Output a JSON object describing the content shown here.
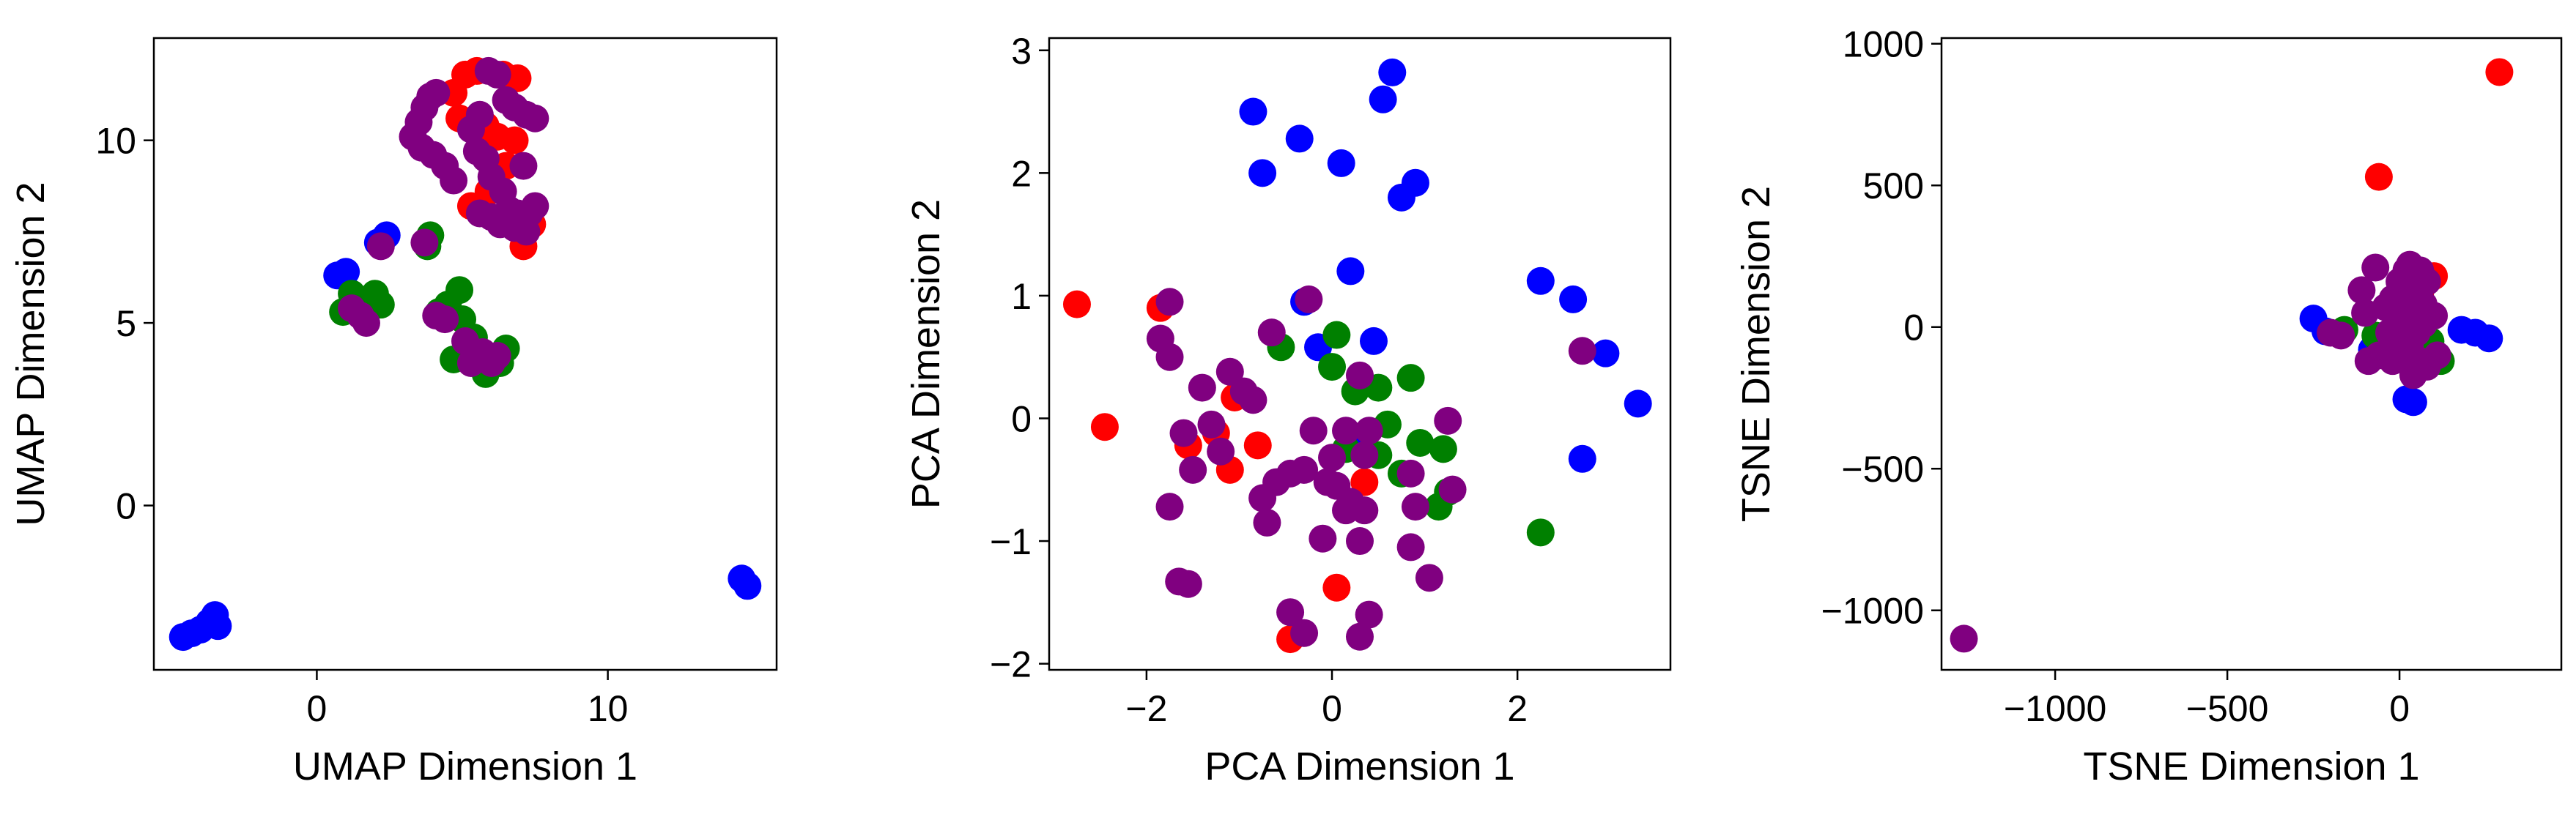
{
  "colors": {
    "red": "#ff0000",
    "green": "#008000",
    "blue": "#0000ff",
    "purple": "#800080"
  },
  "chart_data": [
    {
      "type": "scatter",
      "xlabel": "UMAP Dimension 1",
      "ylabel": "UMAP Dimension 2",
      "xlim": [
        -5.6,
        15.8
      ],
      "ylim": [
        -4.5,
        12.8
      ],
      "xticks": [
        0,
        10
      ],
      "yticks": [
        0,
        5,
        10
      ],
      "grid": false,
      "series": [
        {
          "color": "#0000ff",
          "points": [
            [
              -4.6,
              -3.6
            ],
            [
              -4.3,
              -3.5
            ],
            [
              -4.0,
              -3.4
            ],
            [
              -3.7,
              -3.2
            ],
            [
              -3.5,
              -3.0
            ],
            [
              -3.4,
              -3.3
            ],
            [
              0.7,
              6.3
            ],
            [
              1.0,
              6.4
            ],
            [
              2.1,
              7.2
            ],
            [
              2.4,
              7.4
            ],
            [
              14.6,
              -2.0
            ],
            [
              14.8,
              -2.2
            ]
          ]
        },
        {
          "color": "#008000",
          "points": [
            [
              0.9,
              5.3
            ],
            [
              1.2,
              5.8
            ],
            [
              1.6,
              5.5
            ],
            [
              2.0,
              5.8
            ],
            [
              2.2,
              5.5
            ],
            [
              3.8,
              7.1
            ],
            [
              4.2,
              5.3
            ],
            [
              4.5,
              5.5
            ],
            [
              4.9,
              5.9
            ],
            [
              5.0,
              5.1
            ],
            [
              5.4,
              4.6
            ],
            [
              4.7,
              4.0
            ],
            [
              5.8,
              3.6
            ],
            [
              6.3,
              3.9
            ],
            [
              6.5,
              4.3
            ],
            [
              3.9,
              7.4
            ]
          ]
        },
        {
          "color": "#ff0000",
          "points": [
            [
              4.7,
              11.3
            ],
            [
              5.1,
              11.8
            ],
            [
              5.5,
              11.9
            ],
            [
              6.4,
              11.8
            ],
            [
              6.9,
              11.7
            ],
            [
              4.9,
              10.6
            ],
            [
              5.8,
              10.4
            ],
            [
              6.2,
              10.1
            ],
            [
              6.8,
              10.0
            ],
            [
              7.1,
              7.1
            ],
            [
              7.4,
              7.7
            ],
            [
              5.3,
              8.2
            ],
            [
              5.9,
              8.6
            ],
            [
              6.5,
              9.3
            ]
          ]
        },
        {
          "color": "#800080",
          "points": [
            [
              3.3,
              10.1
            ],
            [
              3.5,
              10.5
            ],
            [
              3.7,
              10.9
            ],
            [
              3.9,
              11.2
            ],
            [
              4.1,
              11.3
            ],
            [
              3.6,
              9.8
            ],
            [
              4.0,
              9.6
            ],
            [
              4.4,
              9.3
            ],
            [
              4.7,
              8.9
            ],
            [
              5.3,
              10.3
            ],
            [
              5.6,
              10.7
            ],
            [
              5.9,
              11.9
            ],
            [
              6.2,
              11.8
            ],
            [
              6.5,
              11.1
            ],
            [
              6.8,
              10.9
            ],
            [
              7.2,
              10.7
            ],
            [
              7.5,
              10.6
            ],
            [
              5.5,
              9.7
            ],
            [
              5.8,
              9.5
            ],
            [
              6.0,
              9.0
            ],
            [
              6.4,
              8.6
            ],
            [
              6.6,
              8.1
            ],
            [
              6.9,
              8.0
            ],
            [
              7.3,
              8.0
            ],
            [
              7.5,
              8.2
            ],
            [
              7.1,
              9.3
            ],
            [
              5.6,
              8.0
            ],
            [
              6.0,
              7.9
            ],
            [
              6.3,
              7.7
            ],
            [
              6.8,
              7.6
            ],
            [
              7.2,
              7.5
            ],
            [
              3.7,
              7.2
            ],
            [
              2.2,
              7.1
            ],
            [
              1.2,
              5.4
            ],
            [
              1.5,
              5.2
            ],
            [
              1.7,
              5.0
            ],
            [
              4.1,
              5.2
            ],
            [
              4.4,
              5.1
            ],
            [
              5.1,
              4.5
            ],
            [
              5.4,
              4.0
            ],
            [
              5.7,
              4.2
            ],
            [
              6.0,
              3.9
            ],
            [
              6.2,
              4.1
            ],
            [
              5.3,
              3.9
            ]
          ]
        }
      ]
    },
    {
      "type": "scatter",
      "xlabel": "PCA Dimension 1",
      "ylabel": "PCA Dimension 2",
      "xlim": [
        -3.05,
        3.65
      ],
      "ylim": [
        -2.05,
        3.1
      ],
      "xticks": [
        -2,
        0,
        2
      ],
      "yticks": [
        -2,
        -1,
        0,
        1,
        2,
        3
      ],
      "grid": false,
      "series": [
        {
          "color": "#0000ff",
          "points": [
            [
              -0.85,
              2.5
            ],
            [
              -0.75,
              2.0
            ],
            [
              -0.35,
              2.28
            ],
            [
              0.1,
              2.08
            ],
            [
              0.55,
              2.6
            ],
            [
              0.65,
              2.82
            ],
            [
              0.9,
              1.92
            ],
            [
              0.75,
              1.8
            ],
            [
              0.2,
              1.2
            ],
            [
              -0.3,
              0.95
            ],
            [
              -0.15,
              0.58
            ],
            [
              0.45,
              0.63
            ],
            [
              2.25,
              1.12
            ],
            [
              2.6,
              0.97
            ],
            [
              2.95,
              0.53
            ],
            [
              3.3,
              0.12
            ],
            [
              2.7,
              -0.33
            ],
            [
              0.25,
              -0.2
            ]
          ]
        },
        {
          "color": "#008000",
          "points": [
            [
              -0.55,
              0.58
            ],
            [
              0.05,
              0.68
            ],
            [
              0.0,
              0.42
            ],
            [
              0.25,
              0.22
            ],
            [
              0.5,
              0.25
            ],
            [
              0.85,
              0.33
            ],
            [
              0.6,
              -0.05
            ],
            [
              0.95,
              -0.2
            ],
            [
              1.2,
              -0.25
            ],
            [
              1.15,
              -0.72
            ],
            [
              0.5,
              -0.3
            ],
            [
              0.75,
              -0.45
            ],
            [
              1.25,
              -0.6
            ],
            [
              2.25,
              -0.93
            ],
            [
              0.15,
              -0.25
            ]
          ]
        },
        {
          "color": "#ff0000",
          "points": [
            [
              -2.75,
              0.93
            ],
            [
              -2.45,
              -0.07
            ],
            [
              -1.85,
              0.9
            ],
            [
              -1.05,
              0.17
            ],
            [
              -0.8,
              -0.22
            ],
            [
              -1.1,
              -0.42
            ],
            [
              -1.55,
              -0.22
            ],
            [
              0.35,
              -0.52
            ],
            [
              0.05,
              -1.38
            ],
            [
              -0.45,
              -1.8
            ],
            [
              -1.25,
              -0.12
            ]
          ]
        },
        {
          "color": "#800080",
          "points": [
            [
              -1.75,
              0.95
            ],
            [
              -1.85,
              0.65
            ],
            [
              -1.75,
              0.5
            ],
            [
              -1.1,
              0.38
            ],
            [
              -1.4,
              0.25
            ],
            [
              -0.95,
              0.22
            ],
            [
              -0.85,
              0.15
            ],
            [
              -0.65,
              0.7
            ],
            [
              -0.25,
              0.97
            ],
            [
              0.3,
              0.35
            ],
            [
              -1.6,
              -0.12
            ],
            [
              -1.5,
              -0.42
            ],
            [
              -1.3,
              -0.05
            ],
            [
              -1.2,
              -0.27
            ],
            [
              -0.6,
              -0.52
            ],
            [
              -0.45,
              -0.45
            ],
            [
              -0.3,
              -0.42
            ],
            [
              -0.2,
              -0.1
            ],
            [
              0.0,
              -0.32
            ],
            [
              0.15,
              -0.1
            ],
            [
              0.35,
              -0.3
            ],
            [
              0.4,
              -0.1
            ],
            [
              -0.05,
              -0.52
            ],
            [
              0.2,
              -0.68
            ],
            [
              0.15,
              -0.75
            ],
            [
              0.35,
              -0.75
            ],
            [
              -0.75,
              -0.65
            ],
            [
              -0.7,
              -0.85
            ],
            [
              -1.75,
              -0.72
            ],
            [
              -1.65,
              -1.33
            ],
            [
              -1.55,
              -1.35
            ],
            [
              -0.1,
              -0.98
            ],
            [
              0.3,
              -1.0
            ],
            [
              0.85,
              -1.05
            ],
            [
              0.05,
              -0.55
            ],
            [
              0.85,
              -0.45
            ],
            [
              0.9,
              -0.72
            ],
            [
              1.05,
              -1.3
            ],
            [
              1.25,
              -0.02
            ],
            [
              1.3,
              -0.58
            ],
            [
              -0.45,
              -1.58
            ],
            [
              -0.3,
              -1.75
            ],
            [
              0.3,
              -1.78
            ],
            [
              0.4,
              -1.6
            ],
            [
              2.7,
              0.55
            ]
          ]
        }
      ]
    },
    {
      "type": "scatter",
      "xlabel": "TSNE Dimension 1",
      "ylabel": "TSNE Dimension 2",
      "xlim": [
        -1330,
        470
      ],
      "ylim": [
        -1210,
        1020
      ],
      "xticks": [
        -1000,
        -500,
        0
      ],
      "yticks": [
        -1000,
        -500,
        0,
        500,
        1000
      ],
      "grid": false,
      "series": [
        {
          "color": "#ff0000",
          "points": [
            [
              290,
              900
            ],
            [
              -60,
              530
            ],
            [
              100,
              180
            ],
            [
              60,
              120
            ]
          ]
        },
        {
          "color": "#0000ff",
          "points": [
            [
              -250,
              30
            ],
            [
              -215,
              -15
            ],
            [
              40,
              -265
            ],
            [
              20,
              -255
            ],
            [
              180,
              -10
            ],
            [
              220,
              -20
            ],
            [
              260,
              -40
            ],
            [
              -80,
              -80
            ]
          ]
        },
        {
          "color": "#008000",
          "points": [
            [
              -160,
              -10
            ],
            [
              -70,
              -30
            ],
            [
              90,
              -50
            ],
            [
              120,
              -120
            ]
          ]
        },
        {
          "color": "#800080",
          "points": [
            [
              -1265,
              -1100
            ],
            [
              -170,
              -30
            ],
            [
              -200,
              -20
            ],
            [
              -110,
              130
            ],
            [
              -100,
              50
            ],
            [
              -70,
              210
            ],
            [
              -40,
              70
            ],
            [
              -20,
              100
            ],
            [
              0,
              160
            ],
            [
              20,
              200
            ],
            [
              30,
              220
            ],
            [
              60,
              200
            ],
            [
              80,
              160
            ],
            [
              20,
              120
            ],
            [
              40,
              60
            ],
            [
              70,
              80
            ],
            [
              100,
              40
            ],
            [
              -30,
              -20
            ],
            [
              0,
              -40
            ],
            [
              30,
              -70
            ],
            [
              60,
              -120
            ],
            [
              -90,
              -120
            ],
            [
              -60,
              -100
            ],
            [
              10,
              -90
            ],
            [
              50,
              -20
            ],
            [
              80,
              -140
            ],
            [
              40,
              -170
            ],
            [
              110,
              -100
            ],
            [
              70,
              10
            ],
            [
              0,
              10
            ],
            [
              -20,
              -120
            ]
          ]
        }
      ]
    }
  ]
}
